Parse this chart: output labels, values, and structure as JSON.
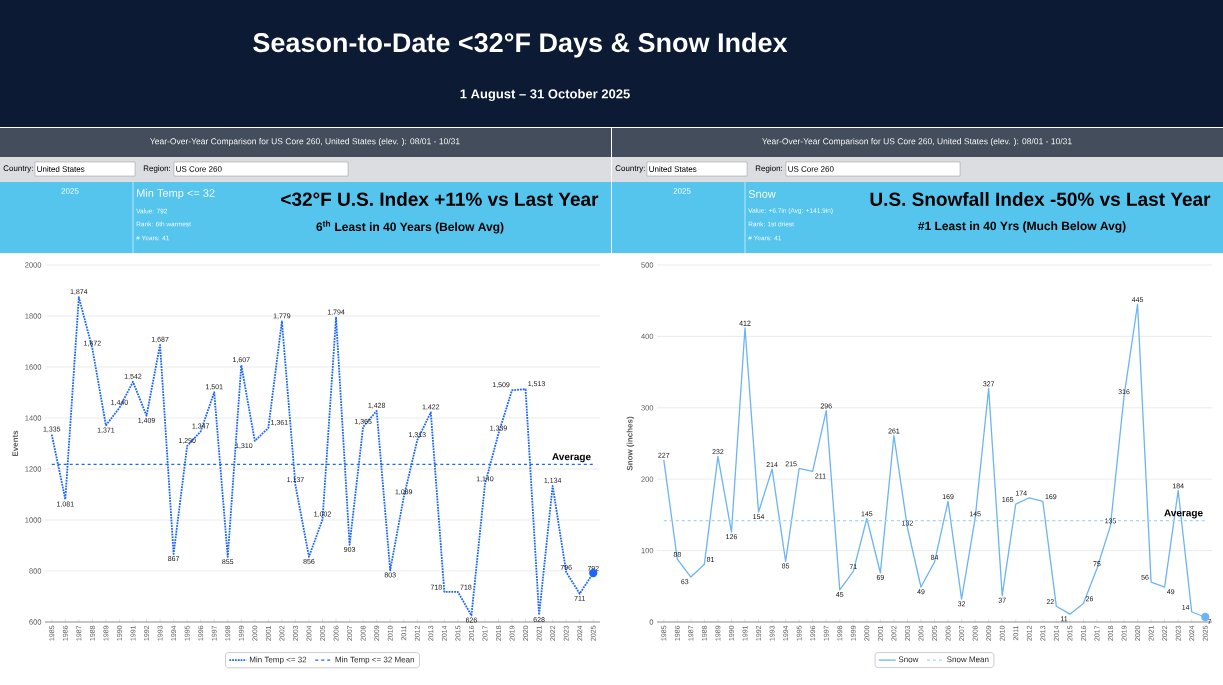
{
  "chart_data": [
    {
      "type": "other",
      "title": "Season-to-Date <32°F Days & Snow Index",
      "subtitle": "1 August – 31 October 2025"
    },
    {
      "type": "line",
      "title": "<32°F U.S. Index +11% vs Last Year",
      "subtitle": "6$^{th}$ Least in 40 Years (Below Avg)",
      "annotations": [
        "Year-Over-Year Comparison for US Core 260, United States (elev. ): 08/01 - 10/31",
        "Country:",
        "United States",
        "Region:",
        "US Core 260",
        "2025",
        "Min Temp <= 32",
        "Value: 792",
        "Rank: 6th warmest",
        "# Years: 41",
        {
          "text": "Average",
          "x": "2025",
          "y": 1218
        }
      ],
      "categories": [
        "1985",
        "1986",
        "1987",
        "1988",
        "1989",
        "1990",
        "1991",
        "1992",
        "1993",
        "1994",
        "1995",
        "1996",
        "1997",
        "1998",
        "1999",
        "2000",
        "2001",
        "2002",
        "2003",
        "2004",
        "2005",
        "2006",
        "2007",
        "2008",
        "2009",
        "2010",
        "2011",
        "2012",
        "2013",
        "2014",
        "2015",
        "2016",
        "2017",
        "2018",
        "2019",
        "2020",
        "2021",
        "2022",
        "2023",
        "2024",
        "2025"
      ],
      "ylabel": "Events",
      "ylim": [
        600,
        2000
      ],
      "yticks": [
        600,
        800,
        1000,
        1200,
        1400,
        1600,
        1800,
        2000
      ],
      "grid": "y",
      "legend": "bottom",
      "series": [
        {
          "name": "Min Temp <= 32",
          "color": "#1a66ff",
          "line_style": "dotted",
          "values": [
            1335,
            1081,
            1874,
            1672,
            1371,
            1440,
            1542,
            1409,
            1687,
            867,
            1290,
            1347,
            1501,
            855,
            1607,
            1310,
            1361,
            1779,
            1137,
            856,
            1002,
            1794,
            903,
            1365,
            1428,
            803,
            1089,
            1313,
            1422,
            718,
            718,
            626,
            1140,
            1339,
            1509,
            1513,
            628,
            1134,
            796,
            711,
            792
          ],
          "value_labels": [
            "1,335",
            "1,081",
            "1,874",
            "1,672",
            "1,371",
            "1,440",
            "1,542",
            "1,409",
            "1,687",
            "867",
            "1,290",
            "1,347",
            "1,501",
            "855",
            "1,607",
            "1,310",
            "1,361",
            "1,779",
            "1,137",
            "856",
            "1,002",
            "1,794",
            "903",
            "1,365",
            "1,428",
            "803",
            "1,089",
            "1,313",
            "1,422",
            "718",
            "718",
            "626",
            "1,140",
            "1,339",
            "1,509",
            "1,513",
            "628",
            "1,134",
            "796",
            "711",
            "792"
          ]
        },
        {
          "name": "Min Temp <= 32 Mean",
          "color": "#1a66ff",
          "line_style": "dashed",
          "values": [
            1218,
            1218,
            1218,
            1218,
            1218,
            1218,
            1218,
            1218,
            1218,
            1218,
            1218,
            1218,
            1218,
            1218,
            1218,
            1218,
            1218,
            1218,
            1218,
            1218,
            1218,
            1218,
            1218,
            1218,
            1218,
            1218,
            1218,
            1218,
            1218,
            1218,
            1218,
            1218,
            1218,
            1218,
            1218,
            1218,
            1218,
            1218,
            1218,
            1218,
            1218
          ]
        },
        {
          "type": "scatter",
          "color": "#1a66ff",
          "values": [
            null,
            null,
            null,
            null,
            null,
            null,
            null,
            null,
            null,
            null,
            null,
            null,
            null,
            null,
            null,
            null,
            null,
            null,
            null,
            null,
            null,
            null,
            null,
            null,
            null,
            null,
            null,
            null,
            null,
            null,
            null,
            null,
            null,
            null,
            null,
            null,
            null,
            null,
            null,
            null,
            792
          ]
        }
      ]
    },
    {
      "type": "line",
      "title": "U.S. Snowfall Index -50% vs Last Year",
      "subtitle": "#1 Least in 40 Yrs (Much Below Avg)",
      "annotations": [
        "Year-Over-Year Comparison for US Core 260, United States (elev. ): 08/01 - 10/31",
        "Country:",
        "United States",
        "Region:",
        "US Core 260",
        "2025",
        "Snow",
        "Value: +6.7in (Avg: +141.9in)",
        "Rank: 1st driest",
        "# Years: 41",
        {
          "text": "Average",
          "x": "2025",
          "y": 142
        }
      ],
      "categories": [
        "1985",
        "1986",
        "1987",
        "1988",
        "1989",
        "1990",
        "1991",
        "1992",
        "1993",
        "1994",
        "1995",
        "1996",
        "1997",
        "1998",
        "1999",
        "2000",
        "2001",
        "2002",
        "2003",
        "2004",
        "2005",
        "2006",
        "2007",
        "2008",
        "2009",
        "2010",
        "2011",
        "2012",
        "2013",
        "2014",
        "2015",
        "2016",
        "2017",
        "2018",
        "2019",
        "2020",
        "2021",
        "2022",
        "2023",
        "2024",
        "2025"
      ],
      "ylabel": "Snow (inches)",
      "ylim": [
        0,
        500
      ],
      "yticks": [
        0,
        100,
        200,
        300,
        400,
        500
      ],
      "grid": "y",
      "legend": "bottom",
      "series": [
        {
          "name": "Snow",
          "color": "#6cb4f5",
          "line_style": "solid",
          "values": [
            227,
            88,
            63,
            81,
            232,
            126,
            412,
            154,
            214,
            85,
            215,
            211,
            296,
            45,
            71,
            145,
            69,
            261,
            132,
            49,
            84,
            169,
            32,
            145,
            327,
            37,
            165,
            174,
            169,
            22,
            11,
            26,
            75,
            135,
            316,
            445,
            56,
            49,
            184,
            14,
            7
          ],
          "value_labels": [
            "227",
            "88",
            "63",
            "81",
            "232",
            "126",
            "412",
            "154",
            "214",
            "85",
            "215",
            "211",
            "296",
            "45",
            "71",
            "145",
            "69",
            "261",
            "132",
            "49",
            "84",
            "169",
            "32",
            "145",
            "327",
            "37",
            "165",
            "174",
            "169",
            "22",
            "11",
            "26",
            "75",
            "135",
            "316",
            "445",
            "56",
            "49",
            "184",
            "14",
            "7"
          ]
        },
        {
          "name": "Snow Mean",
          "color": "#a9d3f7",
          "line_style": "dashed",
          "values": [
            142,
            142,
            142,
            142,
            142,
            142,
            142,
            142,
            142,
            142,
            142,
            142,
            142,
            142,
            142,
            142,
            142,
            142,
            142,
            142,
            142,
            142,
            142,
            142,
            142,
            142,
            142,
            142,
            142,
            142,
            142,
            142,
            142,
            142,
            142,
            142,
            142,
            142,
            142,
            142,
            142
          ]
        },
        {
          "type": "scatter",
          "color": "#6cb4f5",
          "values": [
            null,
            null,
            null,
            null,
            null,
            null,
            null,
            null,
            null,
            null,
            null,
            null,
            null,
            null,
            null,
            null,
            null,
            null,
            null,
            null,
            null,
            null,
            null,
            null,
            null,
            null,
            null,
            null,
            null,
            null,
            null,
            null,
            null,
            null,
            null,
            null,
            null,
            null,
            null,
            null,
            7
          ]
        }
      ]
    }
  ]
}
